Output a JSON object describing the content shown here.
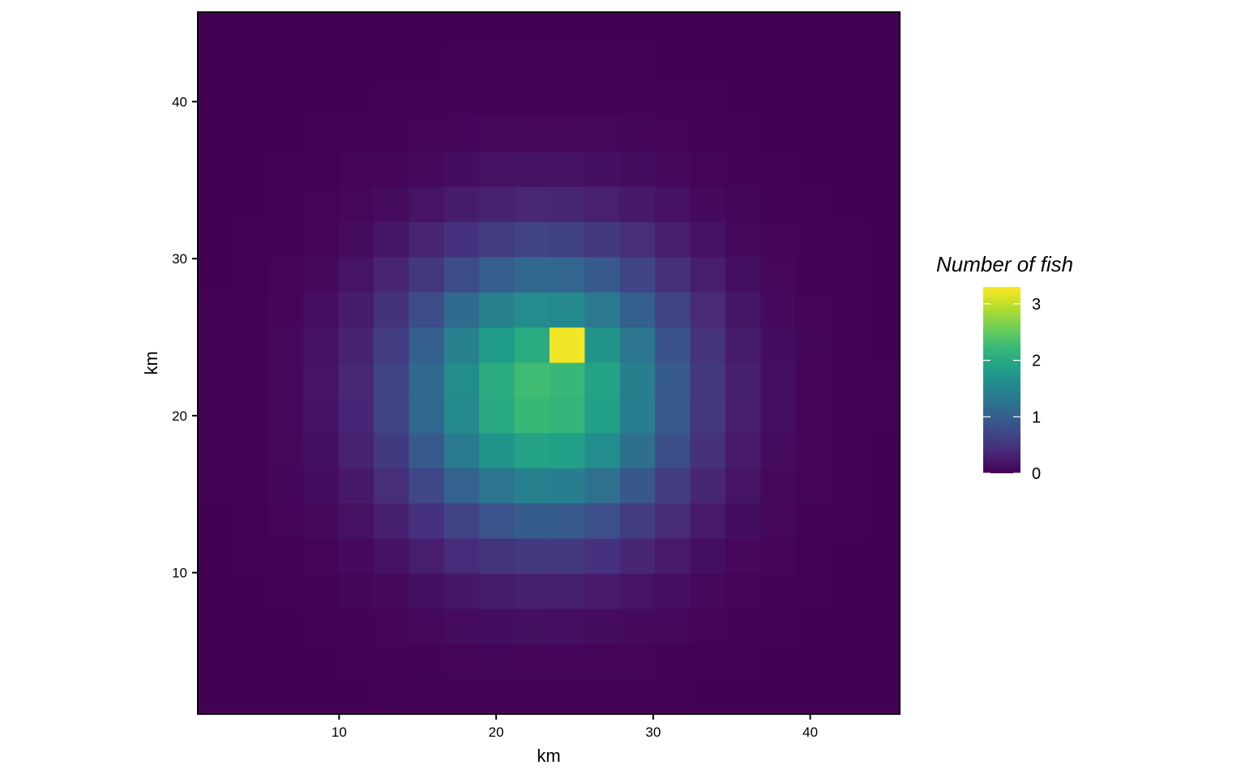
{
  "chart_data": {
    "type": "heatmap",
    "title": "",
    "xlabel": "km",
    "ylabel": "km",
    "xlim": [
      1,
      45.7
    ],
    "ylim": [
      1,
      45.7
    ],
    "x_ticks": [
      10,
      20,
      30,
      40
    ],
    "y_ticks": [
      10,
      20,
      30,
      40
    ],
    "grid": false,
    "cell_size_km": 2.24,
    "cell_centers": [
      2.12,
      4.36,
      6.6,
      8.84,
      11.08,
      13.32,
      15.56,
      17.8,
      20.04,
      22.28,
      24.52,
      26.76,
      29.0,
      31.24,
      33.48,
      35.72,
      37.96,
      40.2,
      42.44,
      44.68
    ],
    "field_model": "values are a smooth bump centred near (23, 21.5) km with a single high cell at (24.52, 24.5) km",
    "peak": {
      "x": 24.52,
      "y": 24.5,
      "value": 3.25
    },
    "colorscale": "viridis",
    "colorscale_colors": [
      "#440154",
      "#482878",
      "#3e4989",
      "#31688e",
      "#26828e",
      "#1f9e89",
      "#35b779",
      "#6ece58",
      "#b5de2b",
      "#fde725"
    ],
    "value_range": [
      0,
      3.3
    ],
    "legend": {
      "title": "Number of fish",
      "position": "right",
      "ticks": [
        0,
        1,
        2,
        3
      ],
      "tick_labels": [
        "0",
        "1",
        "2",
        "3"
      ]
    }
  }
}
